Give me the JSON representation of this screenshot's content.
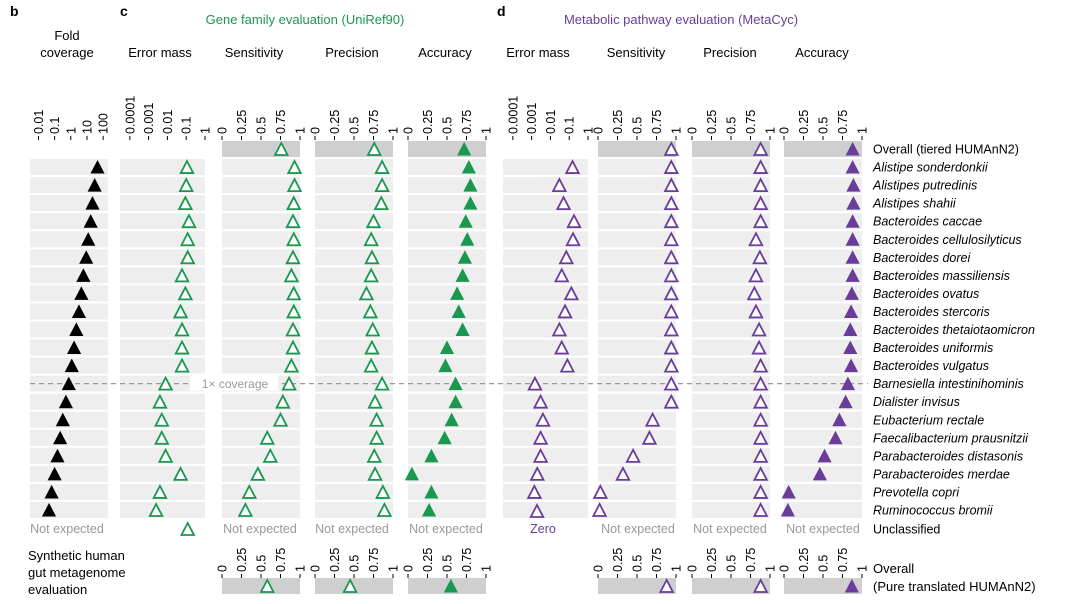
{
  "panel_letters": {
    "b": "b",
    "c": "c",
    "d": "d"
  },
  "headers": {
    "fold": "Fold\ncoverage",
    "c_title": "Gene family evaluation (UniRef90)",
    "d_title": "Metabolic pathway evaluation (MetaCyc)",
    "error_mass": "Error mass",
    "sensitivity": "Sensitivity",
    "precision": "Precision",
    "accuracy": "Accuracy"
  },
  "colors": {
    "black": "#000000",
    "green": "#1a9850",
    "purple": "#6a3d9a",
    "band": "#eeeeee",
    "band_dark": "#cfcfcf",
    "dash": "#9a9a9a"
  },
  "row_labels": [
    "Overall (tiered HUMAnN2)",
    "Alistipe sonderdonkii",
    "Alistipes putredinis",
    "Alistipes shahii",
    "Bacteroides caccae",
    "Bacteroides cellulosilyticus",
    "Bacteroides dorei",
    "Bacteroides massiliensis",
    "Bacteroides ovatus",
    "Bacteroides stercoris",
    "Bacteroides thetaiotaomicron",
    "Bacteroides uniformis",
    "Bacteroides vulgatus",
    "Barnesiella intestinihominis",
    "Dialister invisus",
    "Eubacterium rectale",
    "Faecalibacterium prausnitzii",
    "Parabacteroides distasonis",
    "Parabacteroides merdae",
    "Prevotella copri",
    "Ruminococcus bromii",
    "Unclassified"
  ],
  "bottom": {
    "eval_label": "Synthetic human\ngut metagenome\nevaluation",
    "overall": "Overall",
    "pure": "(Pure translated HUMAnN2)"
  },
  "annotations": {
    "not_expected": "Not expected",
    "zero": "Zero",
    "coverage_line": "1× coverage"
  },
  "chart_data": {
    "type": "scatter",
    "title": "Synthetic human gut metagenome evaluation",
    "rows": [
      "Overall (tiered HUMAnN2)",
      "Alistipe sonderdonkii",
      "Alistipes putredinis",
      "Alistipes shahii",
      "Bacteroides caccae",
      "Bacteroides cellulosilyticus",
      "Bacteroides dorei",
      "Bacteroides massiliensis",
      "Bacteroides ovatus",
      "Bacteroides stercoris",
      "Bacteroides thetaiotaomicron",
      "Bacteroides uniformis",
      "Bacteroides vulgatus",
      "Barnesiella intestinihominis",
      "Dialister invisus",
      "Eubacterium rectale",
      "Faecalibacterium prausnitzii",
      "Parabacteroides distasonis",
      "Parabacteroides merdae",
      "Prevotella copri",
      "Ruminococcus bromii",
      "Unclassified"
    ],
    "fold_coverage": {
      "scale": "log",
      "xlim": [
        0.003,
        200
      ],
      "ticks": [
        0.01,
        0.1,
        1,
        10,
        100
      ],
      "tick_labels": [
        "0.01",
        "0.1",
        "1",
        "10",
        "100"
      ],
      "values": [
        null,
        45,
        30,
        22,
        17,
        12,
        9,
        6,
        4.5,
        3.2,
        2.2,
        1.6,
        1.15,
        0.75,
        0.5,
        0.32,
        0.22,
        0.15,
        0.1,
        0.065,
        0.045,
        null
      ]
    },
    "gene_family": {
      "error_mass": {
        "scale": "log",
        "xlim": [
          3e-05,
          1
        ],
        "ticks": [
          0.0001,
          0.001,
          0.01,
          0.1,
          1
        ],
        "tick_labels": [
          "0.0001",
          "0.001",
          "0.01",
          "0.1",
          "1"
        ],
        "values": [
          null,
          0.11,
          0.1,
          0.09,
          0.14,
          0.12,
          0.12,
          0.06,
          0.09,
          0.05,
          0.06,
          0.06,
          0.06,
          0.008,
          0.004,
          0.005,
          0.005,
          0.008,
          0.05,
          0.004,
          0.0025,
          0.12
        ]
      },
      "sensitivity": {
        "scale": "linear",
        "xlim": [
          0,
          1
        ],
        "ticks": [
          0,
          0.25,
          0.5,
          0.75,
          1
        ],
        "tick_labels": [
          "0",
          "0.25",
          "0.5",
          "0.75",
          "1"
        ],
        "values": [
          0.76,
          0.93,
          0.93,
          0.92,
          0.91,
          0.92,
          0.91,
          0.89,
          0.92,
          0.92,
          0.91,
          0.91,
          0.89,
          0.86,
          0.78,
          0.75,
          0.58,
          0.62,
          0.46,
          0.35,
          0.3,
          null
        ],
        "overall_pure": 0.58
      },
      "precision": {
        "scale": "linear",
        "xlim": [
          0,
          1
        ],
        "ticks": [
          0,
          0.25,
          0.5,
          0.75,
          1
        ],
        "tick_labels": [
          "0",
          "0.25",
          "0.5",
          "0.75",
          "1"
        ],
        "values": [
          0.76,
          0.86,
          0.86,
          0.85,
          0.75,
          0.72,
          0.73,
          0.72,
          0.66,
          0.71,
          0.74,
          0.73,
          0.72,
          0.86,
          0.77,
          0.79,
          0.79,
          0.76,
          0.77,
          0.87,
          0.89,
          null
        ],
        "overall_pure": 0.45
      },
      "accuracy": {
        "scale": "linear",
        "xlim": [
          0,
          1
        ],
        "ticks": [
          0,
          0.25,
          0.5,
          0.75,
          1
        ],
        "tick_labels": [
          "0",
          "0.25",
          "0.5",
          "0.75",
          "1"
        ],
        "values": [
          0.72,
          0.78,
          0.8,
          0.8,
          0.74,
          0.76,
          0.73,
          0.7,
          0.63,
          0.65,
          0.7,
          0.5,
          0.48,
          0.61,
          0.61,
          0.56,
          0.47,
          0.3,
          0.05,
          0.3,
          0.27,
          null
        ],
        "overall_pure": 0.55
      }
    },
    "metabolic_pathway": {
      "error_mass": {
        "scale": "log",
        "xlim": [
          3e-05,
          1
        ],
        "ticks": [
          0.0001,
          0.001,
          0.01,
          0.1,
          1
        ],
        "tick_labels": [
          "0.0001",
          "0.001",
          "0.01",
          "0.1",
          "1"
        ],
        "values": [
          null,
          0.15,
          0.03,
          0.05,
          0.18,
          0.16,
          0.07,
          0.04,
          0.13,
          0.06,
          0.03,
          0.04,
          0.08,
          0.0015,
          0.003,
          0.004,
          0.003,
          0.003,
          0.002,
          0.0014,
          "zero",
          null
        ]
      },
      "sensitivity": {
        "scale": "linear",
        "xlim": [
          0,
          1
        ],
        "ticks": [
          0,
          0.25,
          0.5,
          0.75,
          1
        ],
        "tick_labels": [
          "0",
          "0.25",
          "0.5",
          "0.75",
          "1"
        ],
        "values": [
          0.94,
          0.94,
          0.94,
          0.94,
          0.94,
          0.94,
          0.94,
          0.94,
          0.94,
          0.94,
          0.94,
          0.94,
          0.94,
          0.94,
          0.94,
          0.7,
          0.66,
          0.45,
          0.32,
          0.03,
          0.02,
          null
        ],
        "overall_pure": 0.88
      },
      "precision": {
        "scale": "linear",
        "xlim": [
          0,
          1
        ],
        "ticks": [
          0,
          0.25,
          0.5,
          0.75,
          1
        ],
        "tick_labels": [
          "0",
          "0.25",
          "0.5",
          "0.75",
          "1"
        ],
        "values": [
          0.88,
          0.88,
          0.88,
          0.88,
          0.88,
          0.82,
          0.87,
          0.82,
          0.8,
          0.82,
          0.86,
          0.86,
          0.88,
          0.88,
          0.88,
          0.88,
          0.88,
          0.88,
          0.88,
          0.88,
          0.88,
          null
        ],
        "overall_pure": 0.88
      },
      "accuracy": {
        "scale": "linear",
        "xlim": [
          0,
          1
        ],
        "ticks": [
          0,
          0.25,
          0.5,
          0.75,
          1
        ],
        "tick_labels": [
          "0",
          "0.25",
          "0.5",
          "0.75",
          "1"
        ],
        "values": [
          0.88,
          0.88,
          0.89,
          0.89,
          0.88,
          0.88,
          0.88,
          0.88,
          0.87,
          0.86,
          0.85,
          0.85,
          0.86,
          0.82,
          0.79,
          0.71,
          0.66,
          0.52,
          0.46,
          0.06,
          0.05,
          null
        ],
        "overall_pure": 0.87
      }
    },
    "coverage_reference_row": "Barnesiella intestinihominis"
  }
}
